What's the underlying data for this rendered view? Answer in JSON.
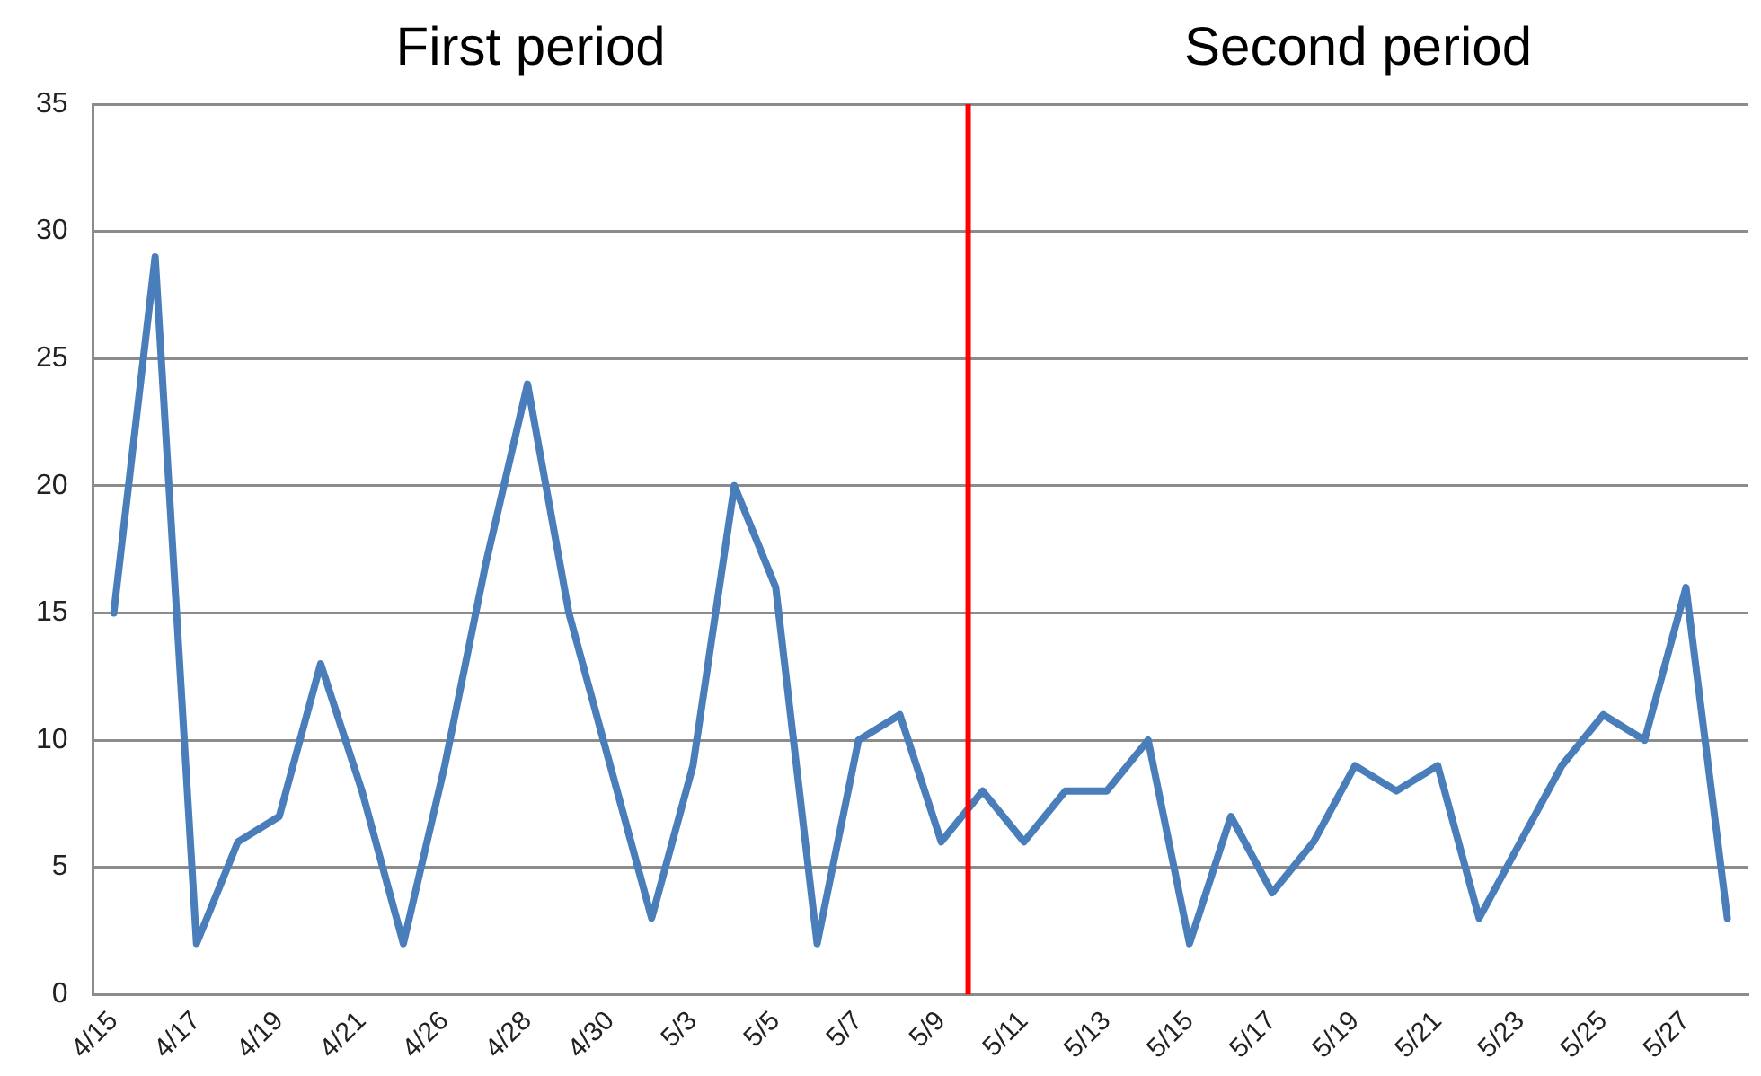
{
  "chart_data": {
    "type": "line",
    "annotations": [
      "First period",
      "Second period"
    ],
    "categories": [
      "4/15",
      null,
      "4/17",
      null,
      "4/19",
      null,
      "4/21",
      null,
      "4/26",
      null,
      "4/28",
      null,
      "4/30",
      null,
      "5/3",
      null,
      "5/5",
      null,
      "5/7",
      null,
      "5/9",
      null,
      "5/11",
      null,
      "5/13",
      null,
      "5/15",
      null,
      "5/17",
      null,
      "5/19",
      null,
      "5/21",
      null,
      "5/23",
      null,
      "5/25",
      null,
      "5/27",
      null
    ],
    "series": [
      {
        "color": "#4a7ebb",
        "values": [
          15,
          29,
          2,
          6,
          7,
          13,
          8,
          2,
          9,
          17,
          24,
          15,
          9,
          3,
          9,
          20,
          16,
          2,
          10,
          11,
          6,
          8,
          6,
          8,
          8,
          10,
          2,
          7,
          4,
          6,
          9,
          8,
          9,
          3,
          6,
          9,
          11,
          10,
          16,
          3
        ]
      }
    ],
    "ylim": [
      0,
      35
    ],
    "yticks": [
      0,
      5,
      10,
      15,
      20,
      25,
      30,
      35
    ],
    "grid": "y",
    "legend": false,
    "marker": "none",
    "line_style": "solid"
  }
}
